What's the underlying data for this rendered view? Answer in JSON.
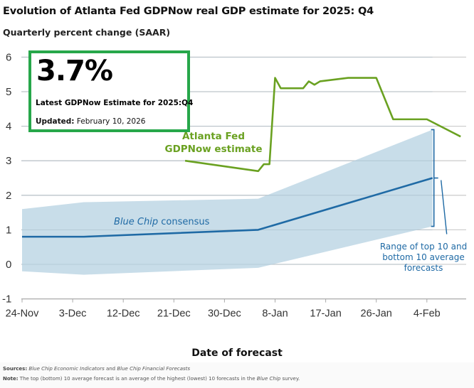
{
  "chart_data": {
    "type": "line",
    "title": "Evolution of Atlanta Fed GDPNow real GDP estimate for 2025: Q4",
    "subtitle": "Quarterly percent change (SAAR)",
    "xlabel": "Date of forecast",
    "ylabel": "",
    "ylim": [
      -1,
      6
    ],
    "yticks": [
      6,
      5,
      4,
      3,
      2,
      1,
      0,
      -1
    ],
    "ytick_labels": [
      "6",
      "5",
      "4",
      "3",
      "2",
      "1",
      "0",
      "-1"
    ],
    "x_unit": "days since 24-Nov-2025",
    "xlim": [
      0,
      79
    ],
    "xticks": [
      0,
      9,
      18,
      27,
      36,
      45,
      54,
      63,
      72
    ],
    "xtick_labels": [
      "24-Nov",
      "3-Dec",
      "12-Dec",
      "21-Dec",
      "30-Dec",
      "8-Jan",
      "17-Jan",
      "26-Jan",
      "4-Feb"
    ],
    "grid": "horizontal",
    "series": [
      {
        "name": "Atlanta Fed GDPNow estimate",
        "color": "#6aa121",
        "x": [
          29,
          42,
          43,
          44,
          45,
          46,
          50,
          51,
          52,
          53,
          58,
          63,
          66,
          72,
          78
        ],
        "values": [
          3.0,
          2.7,
          2.9,
          2.9,
          5.4,
          5.1,
          5.1,
          5.3,
          5.2,
          5.3,
          5.4,
          5.4,
          4.2,
          4.2,
          3.7
        ]
      },
      {
        "name": "Blue Chip consensus",
        "color": "#1f6aa5",
        "x": [
          0,
          11,
          42,
          73
        ],
        "values": [
          0.8,
          0.8,
          1.0,
          2.5
        ]
      }
    ],
    "band": {
      "name": "Range of top 10 and bottom 10 average forecasts",
      "color": "#c5dbe8",
      "x": [
        0,
        11,
        42,
        73
      ],
      "upper": [
        1.6,
        1.8,
        1.9,
        3.9
      ],
      "lower": [
        -0.2,
        -0.3,
        -0.1,
        1.1
      ]
    },
    "annotations": {
      "gdpnow_label": [
        "Atlanta Fed",
        "GDPNow estimate"
      ],
      "bluechip_label_italic": "Blue Chip",
      "bluechip_label_rest": " consensus",
      "range_label": [
        "Range of top 10 and",
        "bottom 10 average",
        "forecasts"
      ]
    }
  },
  "callout": {
    "value": "3.7%",
    "label": "Latest GDPNow Estimate for 2025:Q4",
    "updated_prefix": "Updated:",
    "updated_date": "February 10, 2026"
  },
  "footer": {
    "sources_prefix": "Sources:",
    "sources_italic_1": "Blue Chip Economic Indicators",
    "sources_mid": " and ",
    "sources_italic_2": "Blue Chip Financial Forecasts",
    "note_prefix": "Note:",
    "note_text": " The top (bottom) 10 average forecast is an average of the highest (lowest) 10 forecasts in the ",
    "note_italic": "Blue Chip",
    "note_end": " survey."
  }
}
